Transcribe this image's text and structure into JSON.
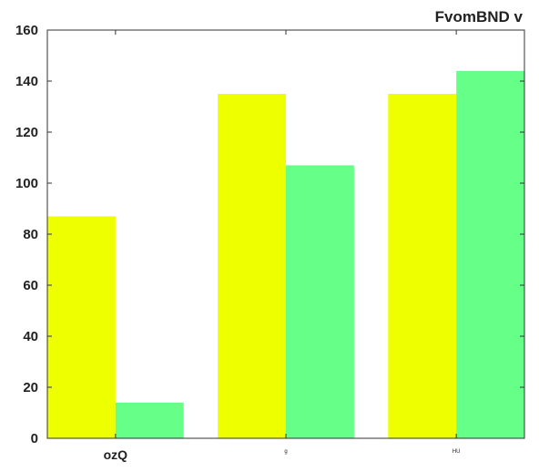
{
  "chart_data": {
    "type": "bar",
    "title": "FvomBND v",
    "title_position": "top-right",
    "xlabel": "",
    "ylabel": "",
    "categories": [
      "ozQ",
      "g",
      "HU"
    ],
    "series": [
      {
        "values": [
          87,
          135,
          135
        ],
        "color": "#eeff00"
      },
      {
        "values": [
          14,
          107,
          144
        ],
        "color": "#66ff88"
      }
    ],
    "ylim": [
      0,
      160
    ],
    "yticks": [
      0,
      20,
      40,
      60,
      80,
      100,
      120,
      140,
      160
    ],
    "grid": false,
    "legend": "none"
  }
}
